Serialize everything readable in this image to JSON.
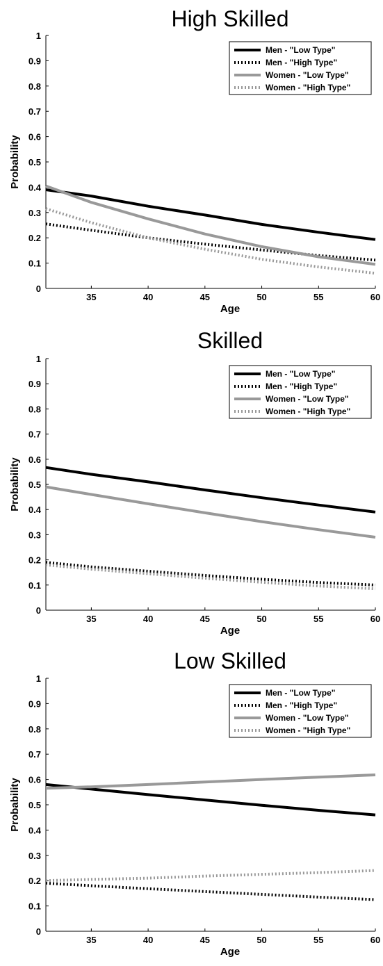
{
  "chart_data": [
    {
      "type": "line",
      "title": "High Skilled",
      "xlabel": "Age",
      "ylabel": "Probability",
      "xlim": [
        31,
        60
      ],
      "ylim": [
        0,
        1
      ],
      "xticks": [
        35,
        40,
        45,
        50,
        55,
        60
      ],
      "yticks": [
        0,
        0.1,
        0.2,
        0.3,
        0.4,
        0.5,
        0.6,
        0.7,
        0.8,
        0.9,
        1
      ],
      "grid": false,
      "legend": "top-right",
      "series": [
        {
          "name": "Men - \"Low Type\"",
          "color": "#000000",
          "style": "solid",
          "x": [
            31,
            35,
            40,
            45,
            50,
            55,
            60
          ],
          "y": [
            0.39,
            0.365,
            0.325,
            0.29,
            0.253,
            0.222,
            0.193
          ]
        },
        {
          "name": "Men - \"High Type\"",
          "color": "#000000",
          "style": "dotted",
          "x": [
            31,
            35,
            40,
            45,
            50,
            55,
            60
          ],
          "y": [
            0.255,
            0.23,
            0.2,
            0.175,
            0.152,
            0.13,
            0.112
          ]
        },
        {
          "name": "Women - \"Low Type\"",
          "color": "#999999",
          "style": "solid",
          "x": [
            31,
            35,
            40,
            45,
            50,
            55,
            60
          ],
          "y": [
            0.405,
            0.34,
            0.275,
            0.215,
            0.165,
            0.125,
            0.095
          ]
        },
        {
          "name": "Women - \"High Type\"",
          "color": "#999999",
          "style": "dotted",
          "x": [
            31,
            35,
            40,
            45,
            50,
            55,
            60
          ],
          "y": [
            0.315,
            0.26,
            0.2,
            0.155,
            0.115,
            0.085,
            0.06
          ]
        }
      ]
    },
    {
      "type": "line",
      "title": "Skilled",
      "xlabel": "Age",
      "ylabel": "Probability",
      "xlim": [
        31,
        60
      ],
      "ylim": [
        0,
        1
      ],
      "xticks": [
        35,
        40,
        45,
        50,
        55,
        60
      ],
      "yticks": [
        0,
        0.1,
        0.2,
        0.3,
        0.4,
        0.5,
        0.6,
        0.7,
        0.8,
        0.9,
        1
      ],
      "grid": false,
      "legend": "top-right",
      "series": [
        {
          "name": "Men - \"Low Type\"",
          "color": "#000000",
          "style": "solid",
          "x": [
            31,
            35,
            40,
            45,
            50,
            55,
            60
          ],
          "y": [
            0.567,
            0.54,
            0.51,
            0.478,
            0.447,
            0.418,
            0.39
          ]
        },
        {
          "name": "Men - \"High Type\"",
          "color": "#000000",
          "style": "dotted",
          "x": [
            31,
            35,
            40,
            45,
            50,
            55,
            60
          ],
          "y": [
            0.19,
            0.172,
            0.155,
            0.138,
            0.123,
            0.11,
            0.1
          ]
        },
        {
          "name": "Women - \"Low Type\"",
          "color": "#999999",
          "style": "solid",
          "x": [
            31,
            35,
            40,
            45,
            50,
            55,
            60
          ],
          "y": [
            0.49,
            0.46,
            0.423,
            0.387,
            0.352,
            0.32,
            0.29
          ]
        },
        {
          "name": "Women - \"High Type\"",
          "color": "#999999",
          "style": "dotted",
          "x": [
            31,
            35,
            40,
            45,
            50,
            55,
            60
          ],
          "y": [
            0.18,
            0.163,
            0.145,
            0.127,
            0.111,
            0.096,
            0.085
          ]
        }
      ]
    },
    {
      "type": "line",
      "title": "Low Skilled",
      "xlabel": "Age",
      "ylabel": "Probability",
      "xlim": [
        31,
        60
      ],
      "ylim": [
        0,
        1
      ],
      "xticks": [
        35,
        40,
        45,
        50,
        55,
        60
      ],
      "yticks": [
        0,
        0.1,
        0.2,
        0.3,
        0.4,
        0.5,
        0.6,
        0.7,
        0.8,
        0.9,
        1
      ],
      "grid": false,
      "legend": "top-right",
      "series": [
        {
          "name": "Men - \"Low Type\"",
          "color": "#000000",
          "style": "solid",
          "x": [
            31,
            35,
            40,
            45,
            50,
            55,
            60
          ],
          "y": [
            0.58,
            0.562,
            0.54,
            0.519,
            0.498,
            0.478,
            0.46
          ]
        },
        {
          "name": "Men - \"High Type\"",
          "color": "#000000",
          "style": "dotted",
          "x": [
            31,
            35,
            40,
            45,
            50,
            55,
            60
          ],
          "y": [
            0.19,
            0.18,
            0.168,
            0.157,
            0.146,
            0.135,
            0.125
          ]
        },
        {
          "name": "Women - \"Low Type\"",
          "color": "#999999",
          "style": "solid",
          "x": [
            31,
            35,
            40,
            45,
            50,
            55,
            60
          ],
          "y": [
            0.565,
            0.571,
            0.58,
            0.59,
            0.6,
            0.609,
            0.618
          ]
        },
        {
          "name": "Women - \"High Type\"",
          "color": "#999999",
          "style": "dotted",
          "x": [
            31,
            35,
            40,
            45,
            50,
            55,
            60
          ],
          "y": [
            0.2,
            0.205,
            0.21,
            0.218,
            0.225,
            0.232,
            0.24
          ]
        }
      ]
    }
  ]
}
